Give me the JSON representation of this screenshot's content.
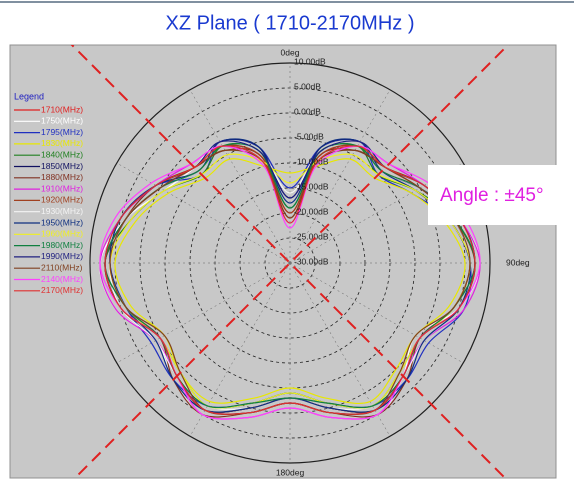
{
  "chart_data": {
    "type": "polar",
    "title": "XZ Plane ( 1710-2170MHz )",
    "legend_title": "Legend",
    "legend": "left",
    "annotation": "Angle : ±45°",
    "annotation_color": "#e020e0",
    "reference_lines": [
      45,
      135
    ],
    "reference_color": "#e02020",
    "theta": [
      0,
      15,
      30,
      45,
      60,
      75,
      90,
      105,
      120,
      135,
      150,
      165,
      180,
      195,
      210,
      225,
      240,
      255,
      270,
      285,
      300,
      315,
      330,
      345
    ],
    "rlim": [
      -30,
      10
    ],
    "rticks": [
      {
        "value": 10,
        "label": "10.00dB"
      },
      {
        "value": 5,
        "label": "5.00dB"
      },
      {
        "value": 0,
        "label": "0.00dB"
      },
      {
        "value": -5,
        "label": "-5.00dB"
      },
      {
        "value": -10,
        "label": "-10.00dB"
      },
      {
        "value": -15,
        "label": "-15.00dB"
      },
      {
        "value": -20,
        "label": "-20.00dB"
      },
      {
        "value": -25,
        "label": "-25.00dB"
      },
      {
        "value": -30,
        "label": "-30.00dB"
      }
    ],
    "thetaticks": [
      {
        "value": 0,
        "label": "0deg"
      },
      {
        "value": 90,
        "label": "90deg"
      },
      {
        "value": 180,
        "label": "180deg"
      }
    ],
    "series": [
      {
        "name": "1710(MHz)",
        "color": "#e02020",
        "values": [
          -20,
          -8,
          -3,
          -4,
          0,
          4,
          7,
          5,
          0,
          2,
          4,
          0,
          -3,
          0,
          4,
          2,
          0,
          5,
          7,
          4,
          0,
          -4,
          -3,
          -8
        ]
      },
      {
        "name": "1750(MHz)",
        "color": "#ffffff",
        "values": [
          -18,
          -7,
          -2,
          -3,
          1,
          5,
          8,
          5,
          -1,
          2,
          5,
          1,
          -2,
          1,
          5,
          3,
          1,
          6,
          8,
          4,
          -1,
          -3,
          -2,
          -7
        ]
      },
      {
        "name": "1795(MHz)",
        "color": "#2030c0",
        "values": [
          -15,
          -6,
          -2,
          -5,
          -2,
          3,
          6,
          6,
          2,
          3,
          3,
          -1,
          -4,
          -1,
          3,
          3,
          2,
          4,
          6,
          5,
          1,
          -5,
          -2,
          -6
        ]
      },
      {
        "name": "1830(MHz)",
        "color": "#e8e800",
        "values": [
          -12,
          -10,
          -6,
          -6,
          -2,
          2,
          5,
          3,
          -1,
          0,
          2,
          -2,
          -5,
          -2,
          2,
          1,
          -1,
          3,
          5,
          2,
          -2,
          -6,
          -6,
          -10
        ]
      },
      {
        "name": "1840(MHz)",
        "color": "#208020",
        "values": [
          -19,
          -7,
          -3,
          -5,
          -1,
          4,
          7,
          4,
          0,
          1,
          3,
          -1,
          -4,
          -1,
          3,
          1,
          0,
          4,
          7,
          3,
          -1,
          -5,
          -3,
          -7
        ]
      },
      {
        "name": "1850(MHz)",
        "color": "#101060",
        "values": [
          -17,
          -6,
          -2,
          -4,
          0,
          5,
          7,
          5,
          1,
          2,
          4,
          0,
          -3,
          0,
          4,
          2,
          1,
          5,
          7,
          4,
          0,
          -4,
          -2,
          -6
        ]
      },
      {
        "name": "1880(MHz)",
        "color": "#803020",
        "values": [
          -21,
          -8,
          -4,
          -3,
          1,
          4,
          6,
          4,
          0,
          3,
          5,
          1,
          -2,
          1,
          5,
          3,
          0,
          4,
          6,
          4,
          1,
          -3,
          -4,
          -8
        ]
      },
      {
        "name": "1910(MHz)",
        "color": "#e020e0",
        "values": [
          -22,
          -9,
          -3,
          -2,
          1,
          5,
          8,
          6,
          1,
          2,
          5,
          2,
          -1,
          2,
          5,
          2,
          1,
          6,
          8,
          5,
          1,
          -2,
          -3,
          -9
        ]
      },
      {
        "name": "1920(MHz)",
        "color": "#a04020",
        "values": [
          -20,
          -8,
          -3,
          -3,
          0,
          4,
          7,
          5,
          0,
          2,
          4,
          0,
          -3,
          0,
          4,
          2,
          0,
          5,
          7,
          4,
          0,
          -3,
          -3,
          -8
        ]
      },
      {
        "name": "1930(MHz)",
        "color": "#f4f4f4",
        "values": [
          -16,
          -7,
          -2,
          -4,
          0,
          4,
          6,
          5,
          1,
          2,
          3,
          0,
          -3,
          0,
          3,
          2,
          1,
          5,
          6,
          4,
          0,
          -4,
          -2,
          -7
        ]
      },
      {
        "name": "1950(MHz)",
        "color": "#103080",
        "values": [
          -18,
          -6,
          -2,
          -4,
          -1,
          3,
          6,
          5,
          1,
          3,
          4,
          0,
          -3,
          0,
          4,
          3,
          1,
          4,
          6,
          5,
          1,
          -4,
          -2,
          -6
        ]
      },
      {
        "name": "1960(MHz)",
        "color": "#f0f020",
        "values": [
          -14,
          -9,
          -5,
          -5,
          -1,
          3,
          6,
          4,
          0,
          1,
          3,
          -1,
          -4,
          -1,
          3,
          1,
          0,
          4,
          6,
          3,
          -1,
          -5,
          -5,
          -9
        ]
      },
      {
        "name": "1980(MHz)",
        "color": "#108040",
        "values": [
          -19,
          -7,
          -3,
          -4,
          0,
          4,
          7,
          4,
          0,
          2,
          3,
          -1,
          -3,
          -1,
          3,
          2,
          0,
          4,
          7,
          4,
          0,
          -4,
          -3,
          -7
        ]
      },
      {
        "name": "1990(MHz)",
        "color": "#202080",
        "values": [
          -17,
          -7,
          -2,
          -3,
          1,
          5,
          7,
          5,
          0,
          2,
          4,
          1,
          -2,
          1,
          4,
          2,
          0,
          5,
          7,
          5,
          1,
          -3,
          -2,
          -7
        ]
      },
      {
        "name": "2110(MHz)",
        "color": "#804020",
        "values": [
          -21,
          -9,
          -4,
          -3,
          0,
          4,
          6,
          4,
          -1,
          1,
          4,
          1,
          -2,
          1,
          4,
          1,
          -1,
          4,
          6,
          4,
          0,
          -3,
          -4,
          -9
        ]
      },
      {
        "name": "2140(MHz)",
        "color": "#ff40ff",
        "values": [
          -23,
          -10,
          -3,
          -2,
          2,
          6,
          8,
          5,
          0,
          2,
          5,
          2,
          -1,
          2,
          5,
          2,
          0,
          5,
          8,
          6,
          2,
          -2,
          -3,
          -10
        ]
      },
      {
        "name": "2170(MHz)",
        "color": "#e03030",
        "values": [
          -22,
          -9,
          -3,
          -3,
          1,
          5,
          7,
          5,
          0,
          2,
          4,
          1,
          -2,
          1,
          4,
          2,
          0,
          5,
          7,
          5,
          1,
          -3,
          -3,
          -9
        ]
      }
    ]
  }
}
